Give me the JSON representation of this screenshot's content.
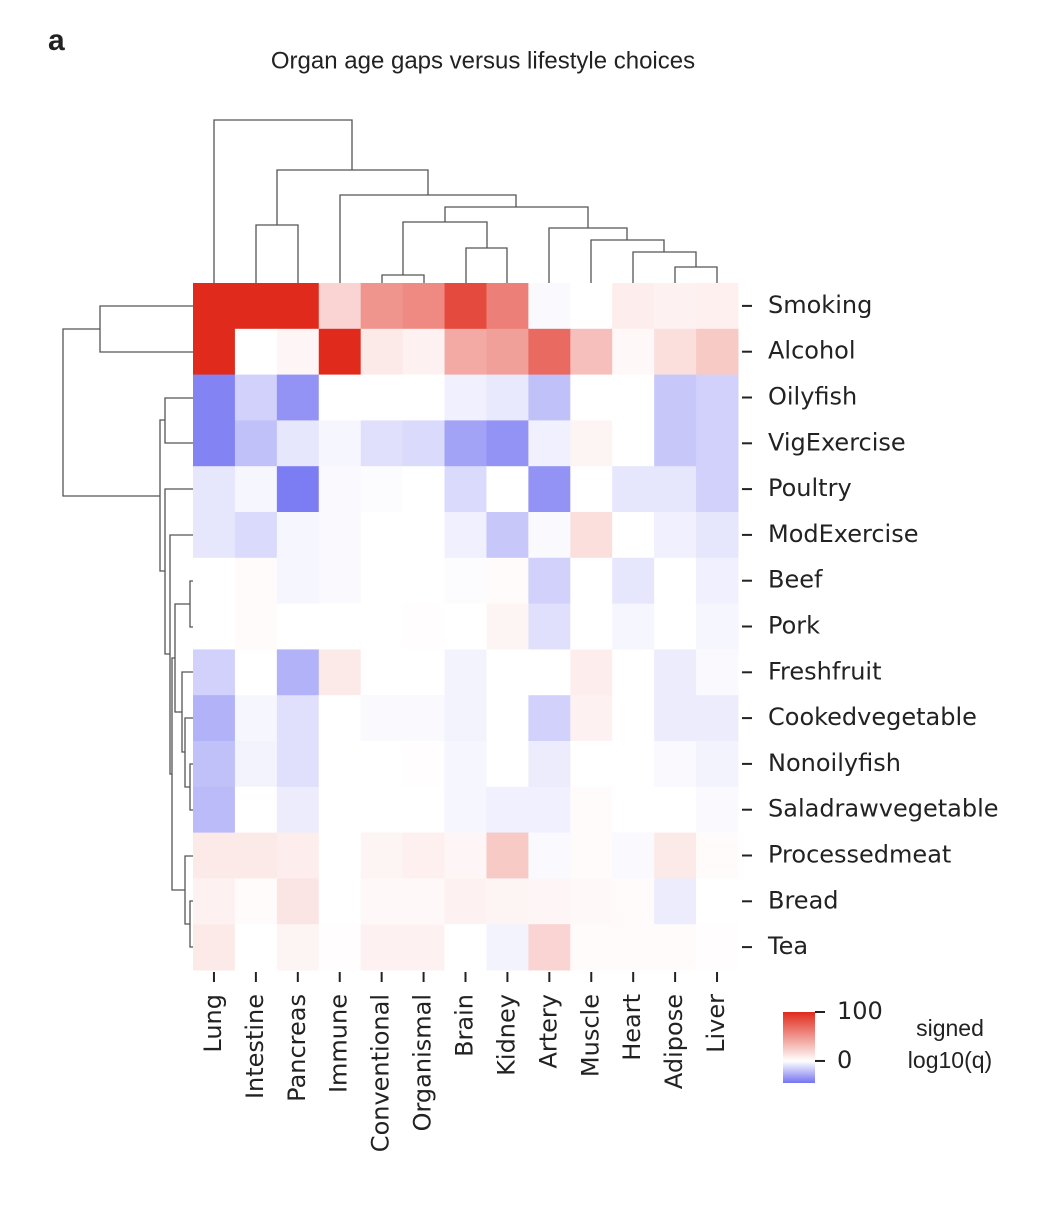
{
  "chart_data": {
    "type": "heatmap",
    "panel_label": "a",
    "title": "Organ age gaps versus lifestyle choices",
    "columns": [
      "Lung",
      "Intestine",
      "Pancreas",
      "Immune",
      "Conventional",
      "Organismal",
      "Brain",
      "Kidney",
      "Artery",
      "Muscle",
      "Heart",
      "Adipose",
      "Liver"
    ],
    "rows": [
      "Smoking",
      "Alcohol",
      "Oilyfish",
      "VigExercise",
      "Poultry",
      "ModExercise",
      "Beef",
      "Pork",
      "Freshfruit",
      "Cookedvegetable",
      "Nonoilyfish",
      "Saladrawvegetable",
      "Processedmeat",
      "Bread",
      "Tea"
    ],
    "values": [
      [
        100,
        100,
        100,
        20,
        50,
        55,
        85,
        60,
        -2,
        0,
        8,
        6,
        7
      ],
      [
        100,
        0,
        4,
        100,
        10,
        6,
        40,
        45,
        70,
        30,
        3,
        15,
        25
      ],
      [
        -40,
        -15,
        -35,
        0,
        0,
        0,
        -5,
        -7,
        -20,
        0,
        0,
        -18,
        -15
      ],
      [
        -40,
        -20,
        -8,
        -3,
        -10,
        -12,
        -30,
        -35,
        -5,
        5,
        0,
        -18,
        -15
      ],
      [
        -8,
        -3,
        -42,
        -2,
        -1,
        0,
        -12,
        0,
        -35,
        0,
        -8,
        -8,
        -15
      ],
      [
        -8,
        -12,
        -3,
        -2,
        0,
        0,
        -5,
        -18,
        -2,
        15,
        0,
        -5,
        -8
      ],
      [
        0,
        2,
        -3,
        -2,
        0,
        0,
        -1,
        2,
        -15,
        0,
        -8,
        0,
        -5
      ],
      [
        0,
        2,
        0,
        0,
        0,
        1,
        0,
        5,
        -10,
        0,
        -3,
        0,
        -3
      ],
      [
        -15,
        0,
        -25,
        10,
        0,
        0,
        -4,
        0,
        0,
        8,
        0,
        -6,
        -2
      ],
      [
        -25,
        -3,
        -10,
        0,
        -2,
        -2,
        -4,
        0,
        -15,
        6,
        0,
        -6,
        -6
      ],
      [
        -20,
        -4,
        -10,
        0,
        0,
        1,
        -3,
        0,
        -6,
        0,
        0,
        -2,
        -4
      ],
      [
        -22,
        0,
        -6,
        0,
        0,
        0,
        -3,
        -5,
        -5,
        2,
        0,
        0,
        -2
      ],
      [
        10,
        10,
        8,
        0,
        5,
        7,
        4,
        25,
        -2,
        2,
        -2,
        10,
        2
      ],
      [
        6,
        2,
        12,
        0,
        3,
        3,
        6,
        5,
        4,
        3,
        2,
        -6,
        0
      ],
      [
        10,
        0,
        5,
        1,
        6,
        6,
        0,
        -4,
        20,
        2,
        2,
        2,
        1
      ]
    ],
    "colors": {
      "low": "#7474f2",
      "mid": "#ffffff",
      "high": "#e02a1c"
    },
    "colorbar": {
      "lim": [
        -45,
        100
      ],
      "ticks": [
        100,
        0
      ],
      "label": [
        "signed",
        "log10(q)"
      ]
    }
  }
}
